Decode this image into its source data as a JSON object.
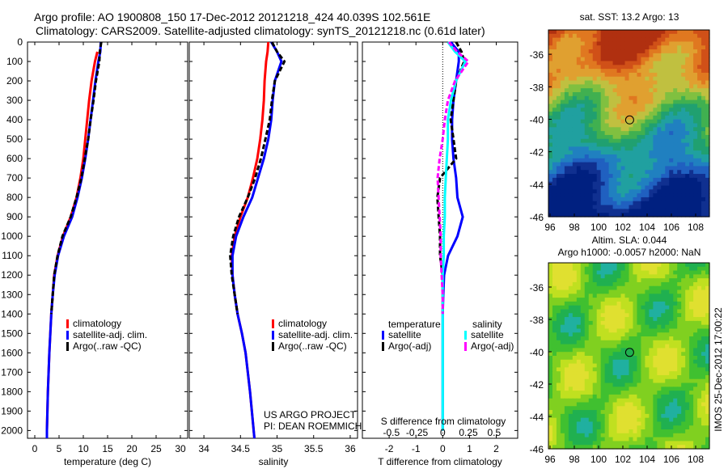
{
  "title": {
    "line1": "Argo profile: AO 1900808_150 17-Dec-2012 20121218_424 40.039S 102.561E",
    "line2": "Climatology: CARS2009. Satellite-adjusted climatology: synTS_20121218.nc (0.61d later)"
  },
  "colors": {
    "climatology": "#ff0000",
    "satellite": "#0000ff",
    "argo": "#000000",
    "sal_satellite": "#00ffff",
    "sal_argo": "#ff00ff"
  },
  "chart_data": [
    {
      "type": "line",
      "name": "temperature-profile",
      "xlabel": "temperature (deg C)",
      "xlim": [
        -1.5,
        31.5
      ],
      "xticks": [
        "0",
        "5",
        "10",
        "15",
        "20",
        "25",
        "30"
      ],
      "xtick_values": [
        0,
        5,
        10,
        15,
        20,
        25,
        30
      ],
      "ylim": [
        0,
        2040
      ],
      "yreversed": true,
      "yticks": [
        "0",
        "100",
        "200",
        "300",
        "400",
        "500",
        "600",
        "700",
        "800",
        "900",
        "1000",
        "1100",
        "1200",
        "1300",
        "1400",
        "1500",
        "1600",
        "1700",
        "1800",
        "1900",
        "2000"
      ],
      "legend": [
        "climatology",
        "satellite-adj. clim.",
        "Argo(..raw -QC)"
      ],
      "depth": [
        0,
        50,
        100,
        200,
        300,
        400,
        500,
        600,
        700,
        800,
        900,
        1000,
        1100,
        1200,
        1300,
        1400,
        1500,
        1600,
        1800,
        2000,
        2040
      ],
      "series": [
        {
          "name": "climatology",
          "values": [
            null,
            12.9,
            12.4,
            11.7,
            11.2,
            10.8,
            10.4,
            10.0,
            9.4,
            8.6,
            7.4,
            5.8,
            4.7,
            4.0,
            3.7,
            3.4,
            3.2,
            3.0,
            2.7,
            2.5,
            2.5
          ]
        },
        {
          "name": "satellite-adj. clim.",
          "values": [
            13.6,
            13.5,
            13.1,
            12.5,
            12.0,
            11.5,
            11.0,
            10.4,
            9.7,
            8.8,
            7.7,
            6.0,
            4.8,
            4.1,
            3.7,
            3.4,
            3.2,
            3.0,
            2.7,
            2.5,
            2.5
          ]
        },
        {
          "name": "Argo(..raw -QC)",
          "values": [
            13.7,
            13.4,
            13.3,
            12.6,
            12.1,
            11.5,
            11.0,
            10.3,
            9.6,
            8.6,
            7.4,
            5.7,
            4.7,
            4.0,
            3.7,
            3.4,
            null,
            null,
            null,
            null,
            null
          ]
        }
      ],
      "annotation": ""
    },
    {
      "type": "line",
      "name": "salinity-profile",
      "xlabel": "salinity",
      "xlim": [
        33.8,
        36.1
      ],
      "xticks": [
        "34",
        "34.5",
        "35",
        "35.5",
        "36"
      ],
      "xtick_values": [
        34,
        34.5,
        35,
        35.5,
        36
      ],
      "ylim": [
        0,
        2040
      ],
      "yreversed": true,
      "legend": [
        "climatology",
        "satellite-adj. clim.",
        "Argo(..raw -QC)"
      ],
      "depth": [
        0,
        50,
        100,
        200,
        300,
        400,
        500,
        600,
        700,
        800,
        900,
        1000,
        1100,
        1200,
        1300,
        1400,
        1500,
        1600,
        1800,
        2000,
        2040
      ],
      "series": [
        {
          "name": "climatology",
          "values": [
            34.88,
            34.87,
            34.85,
            34.83,
            34.82,
            34.8,
            34.77,
            34.73,
            34.67,
            34.6,
            34.5,
            34.42,
            34.38,
            34.39,
            34.42,
            34.46,
            34.52,
            34.57,
            34.63,
            34.68,
            34.69
          ]
        },
        {
          "name": "satellite-adj. clim.",
          "values": [
            34.92,
            35.0,
            35.06,
            34.97,
            34.94,
            34.92,
            34.88,
            34.82,
            34.74,
            34.66,
            34.54,
            34.44,
            34.39,
            34.39,
            34.42,
            34.46,
            34.52,
            34.57,
            34.63,
            34.68,
            34.69
          ]
        },
        {
          "name": "Argo(..raw -QC)",
          "values": [
            34.93,
            35.0,
            35.1,
            34.97,
            34.93,
            34.9,
            34.84,
            34.78,
            34.7,
            34.6,
            34.48,
            34.4,
            34.36,
            34.38,
            34.42,
            34.46,
            null,
            null,
            null,
            null,
            null
          ]
        }
      ],
      "annotation": {
        "line1": "US ARGO PROJECT",
        "line2": "PI: DEAN ROEMMICH"
      }
    },
    {
      "type": "line",
      "name": "difference-profile",
      "xlabel": "T difference from climatology",
      "x2label": "S difference from climatology",
      "xlim": [
        -3,
        2.8
      ],
      "xticks": [
        "-2",
        "-1",
        "0",
        "1",
        "2"
      ],
      "xtick_values": [
        -2,
        -1,
        0,
        1,
        2
      ],
      "x2ticks": [
        "-0.5",
        "-0.25",
        "0",
        "0.25",
        "0.5"
      ],
      "x2tick_values": [
        -0.5,
        -0.25,
        0,
        0.25,
        0.5
      ],
      "ylim": [
        0,
        2040
      ],
      "yreversed": true,
      "legend_title_t": "temperature",
      "legend_title_s": "salinity",
      "legend": [
        "satellite",
        "Argo(-adj)",
        "satellite",
        "Argo(-adj)"
      ],
      "depth": [
        0,
        50,
        100,
        200,
        300,
        400,
        500,
        600,
        700,
        800,
        900,
        1000,
        1100,
        1200,
        1300,
        1400,
        1500,
        1600,
        1800,
        2000
      ],
      "series": [
        {
          "name": "T satellite",
          "values": [
            0.3,
            0.6,
            0.6,
            0.5,
            0.4,
            0.35,
            0.35,
            0.4,
            0.5,
            0.55,
            0.75,
            0.55,
            0.2,
            0.05,
            0.02,
            0,
            0,
            0,
            0,
            0
          ]
        },
        {
          "name": "T Argo(-adj)",
          "values": [
            0.5,
            0.7,
            0.8,
            0.5,
            0.4,
            0.3,
            0.4,
            0.5,
            -0.1,
            -0.2,
            -0.15,
            -0.1,
            -0.1,
            0,
            0,
            0,
            null,
            null,
            null,
            null
          ]
        },
        {
          "name": "S satellite",
          "values": [
            0.05,
            0.12,
            0.22,
            0.13,
            0.08,
            0.05,
            0.05,
            0.04,
            0.03,
            0.02,
            0.02,
            0.01,
            0.01,
            0,
            0,
            0,
            0,
            0,
            0,
            0
          ]
        },
        {
          "name": "S Argo(-adj)",
          "values": [
            0.06,
            0.14,
            0.25,
            0.12,
            0.05,
            0.02,
            0.0,
            -0.03,
            -0.05,
            -0.04,
            -0.03,
            -0.02,
            -0.02,
            -0.01,
            0,
            0,
            null,
            null,
            null,
            null
          ]
        }
      ]
    },
    {
      "type": "heatmap",
      "name": "sst-map",
      "title": "sat. SST: 13.2  Argo: 13",
      "xticks": [
        "96",
        "98",
        "100",
        "102",
        "104",
        "106",
        "108"
      ],
      "yticks": [
        "-36",
        "-38",
        "-40",
        "-42",
        "-44",
        "-46"
      ],
      "marker": {
        "lon": 102.56,
        "lat": -40.04
      }
    },
    {
      "type": "heatmap",
      "name": "sla-map",
      "title1": "Altim. SLA: 0.044",
      "title2": "Argo h1000: -0.0057 h2000: NaN",
      "xticks": [
        "96",
        "98",
        "100",
        "102",
        "104",
        "106",
        "108"
      ],
      "yticks": [
        "-36",
        "-38",
        "-40",
        "-42",
        "-44",
        "-46"
      ],
      "marker": {
        "lon": 102.56,
        "lat": -40.04
      }
    }
  ],
  "credit": "IMOS 25-Dec-2012 17:00:22"
}
